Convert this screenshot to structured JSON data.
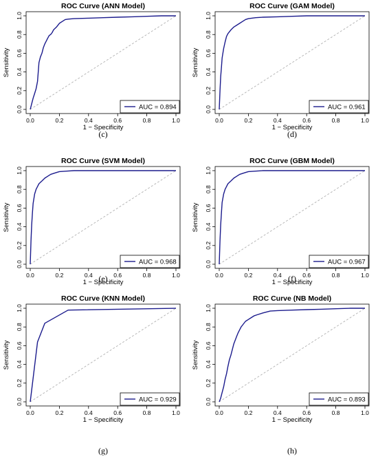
{
  "chart_data": [
    {
      "type": "line",
      "title": "ROC Curve (ANN Model)",
      "xlabel": "1 − Specificity",
      "ylabel": "Sensitivity",
      "xlim": [
        0,
        1
      ],
      "ylim": [
        0,
        1
      ],
      "xticks": [
        "0.0",
        "0.2",
        "0.4",
        "0.6",
        "0.8",
        "1.0"
      ],
      "yticks": [
        "0.0",
        "0.2",
        "0.4",
        "0.6",
        "0.8",
        "1.0"
      ],
      "legend": "bottom-right",
      "legend_label": "AUC = 0.894",
      "caption": "(c)",
      "line_color": "#1a1a8c",
      "diagonal_color": "#b0b0b0",
      "series": [
        {
          "x": [
            0,
            0.01,
            0.02,
            0.03,
            0.04,
            0.05,
            0.06,
            0.07,
            0.08,
            0.09,
            0.1,
            0.11,
            0.12,
            0.13,
            0.14,
            0.15,
            0.16,
            0.18,
            0.2,
            0.22,
            0.24,
            0.26,
            0.3,
            0.4,
            0.5,
            0.6,
            0.7,
            0.8,
            0.9,
            1.0
          ],
          "y": [
            0,
            0.06,
            0.12,
            0.17,
            0.22,
            0.3,
            0.5,
            0.56,
            0.6,
            0.66,
            0.7,
            0.73,
            0.76,
            0.79,
            0.8,
            0.82,
            0.85,
            0.88,
            0.92,
            0.94,
            0.96,
            0.965,
            0.97,
            0.975,
            0.98,
            0.985,
            0.99,
            0.995,
            1.0,
            1.0
          ]
        }
      ]
    },
    {
      "type": "line",
      "title": "ROC Curve (GAM Model)",
      "xlabel": "1 − Specificity",
      "ylabel": "Sensitivity",
      "xlim": [
        0,
        1
      ],
      "ylim": [
        0,
        1
      ],
      "xticks": [
        "0.0",
        "0.2",
        "0.4",
        "0.6",
        "0.8",
        "1.0"
      ],
      "yticks": [
        "0.0",
        "0.2",
        "0.4",
        "0.6",
        "0.8",
        "1.0"
      ],
      "legend": "bottom-right",
      "legend_label": "AUC = 0.961",
      "caption": "(d)",
      "line_color": "#1a1a8c",
      "diagonal_color": "#b0b0b0",
      "series": [
        {
          "x": [
            0,
            0.005,
            0.01,
            0.015,
            0.02,
            0.03,
            0.04,
            0.05,
            0.06,
            0.08,
            0.1,
            0.12,
            0.14,
            0.16,
            0.18,
            0.2,
            0.25,
            0.3,
            0.4,
            0.5,
            0.6,
            0.7,
            0.8,
            0.9,
            1.0
          ],
          "y": [
            0,
            0.2,
            0.35,
            0.45,
            0.55,
            0.65,
            0.72,
            0.78,
            0.81,
            0.85,
            0.88,
            0.9,
            0.92,
            0.94,
            0.96,
            0.97,
            0.98,
            0.985,
            0.99,
            0.995,
            1.0,
            1.0,
            1.0,
            1.0,
            1.0
          ]
        }
      ]
    },
    {
      "type": "line",
      "title": "ROC Curve (SVM Model)",
      "xlabel": "1 − Specificity",
      "ylabel": "Sensitivity",
      "xlim": [
        0,
        1
      ],
      "ylim": [
        0,
        1
      ],
      "xticks": [
        "0.0",
        "0.2",
        "0.4",
        "0.6",
        "0.8",
        "1.0"
      ],
      "yticks": [
        "0.0",
        "0.2",
        "0.4",
        "0.6",
        "0.8",
        "1.0"
      ],
      "legend": "bottom-right",
      "legend_label": "AUC = 0.968",
      "caption": "(e)",
      "line_color": "#1a1a8c",
      "diagonal_color": "#b0b0b0",
      "series": [
        {
          "x": [
            0,
            0.005,
            0.01,
            0.015,
            0.02,
            0.03,
            0.04,
            0.05,
            0.06,
            0.08,
            0.1,
            0.12,
            0.14,
            0.16,
            0.18,
            0.2,
            0.25,
            0.3,
            0.4,
            0.5,
            0.6,
            0.7,
            0.8,
            0.9,
            1.0
          ],
          "y": [
            0,
            0.25,
            0.42,
            0.55,
            0.65,
            0.75,
            0.8,
            0.83,
            0.86,
            0.89,
            0.92,
            0.94,
            0.96,
            0.97,
            0.98,
            0.99,
            0.995,
            1.0,
            1.0,
            1.0,
            1.0,
            1.0,
            1.0,
            1.0,
            1.0
          ]
        }
      ]
    },
    {
      "type": "line",
      "title": "ROC Curve (GBM Model)",
      "xlabel": "1 − Specificity",
      "ylabel": "Sensitivity",
      "xlim": [
        0,
        1
      ],
      "ylim": [
        0,
        1
      ],
      "xticks": [
        "0.0",
        "0.2",
        "0.4",
        "0.6",
        "0.8",
        "1.0"
      ],
      "yticks": [
        "0.0",
        "0.2",
        "0.4",
        "0.6",
        "0.8",
        "1.0"
      ],
      "legend": "bottom-right",
      "legend_label": "AUC = 0.967",
      "caption": "(f)",
      "line_color": "#1a1a8c",
      "diagonal_color": "#b0b0b0",
      "series": [
        {
          "x": [
            0,
            0.005,
            0.01,
            0.015,
            0.02,
            0.03,
            0.04,
            0.05,
            0.06,
            0.08,
            0.1,
            0.12,
            0.14,
            0.16,
            0.18,
            0.2,
            0.25,
            0.3,
            0.4,
            0.5,
            0.6,
            0.7,
            0.8,
            0.9,
            1.0
          ],
          "y": [
            0,
            0.25,
            0.42,
            0.55,
            0.66,
            0.75,
            0.8,
            0.83,
            0.86,
            0.89,
            0.92,
            0.94,
            0.96,
            0.97,
            0.98,
            0.99,
            0.995,
            1.0,
            1.0,
            1.0,
            1.0,
            1.0,
            1.0,
            1.0,
            1.0
          ]
        }
      ]
    },
    {
      "type": "line",
      "title": "ROC Curve (KNN Model)",
      "xlabel": "1 − Specificity",
      "ylabel": "Sensitivity",
      "xlim": [
        0,
        1
      ],
      "ylim": [
        0,
        1
      ],
      "xticks": [
        "0.0",
        "0.2",
        "0.4",
        "0.6",
        "0.8",
        "1.0"
      ],
      "yticks": [
        "0.0",
        "0.2",
        "0.4",
        "0.6",
        "0.8",
        "1.0"
      ],
      "legend": "bottom-right",
      "legend_label": "AUC = 0.929",
      "caption": "(g)",
      "line_color": "#1a1a8c",
      "diagonal_color": "#b0b0b0",
      "series": [
        {
          "x": [
            0,
            0.05,
            0.1,
            0.26,
            1.0
          ],
          "y": [
            0,
            0.64,
            0.84,
            0.98,
            1.0
          ]
        }
      ]
    },
    {
      "type": "line",
      "title": "ROC Curve (NB Model)",
      "xlabel": "1 − Specificity",
      "ylabel": "Sensitivity",
      "xlim": [
        0,
        1
      ],
      "ylim": [
        0,
        1
      ],
      "xticks": [
        "0.0",
        "0.2",
        "0.4",
        "0.6",
        "0.8",
        "1.0"
      ],
      "yticks": [
        "0.0",
        "0.2",
        "0.4",
        "0.6",
        "0.8",
        "1.0"
      ],
      "legend": "bottom-right",
      "legend_label": "AUC = 0.893",
      "caption": "(h)",
      "line_color": "#1a1a8c",
      "diagonal_color": "#b0b0b0",
      "series": [
        {
          "x": [
            0,
            0.01,
            0.02,
            0.03,
            0.04,
            0.05,
            0.06,
            0.07,
            0.08,
            0.09,
            0.1,
            0.11,
            0.12,
            0.13,
            0.14,
            0.15,
            0.16,
            0.18,
            0.2,
            0.22,
            0.24,
            0.26,
            0.3,
            0.35,
            0.4,
            0.5,
            0.6,
            0.7,
            0.8,
            0.9,
            1.0
          ],
          "y": [
            0,
            0.04,
            0.1,
            0.16,
            0.24,
            0.3,
            0.38,
            0.45,
            0.5,
            0.56,
            0.62,
            0.66,
            0.7,
            0.74,
            0.77,
            0.8,
            0.82,
            0.86,
            0.88,
            0.9,
            0.92,
            0.93,
            0.95,
            0.97,
            0.975,
            0.98,
            0.985,
            0.99,
            0.995,
            1.0,
            1.0
          ]
        }
      ]
    }
  ]
}
